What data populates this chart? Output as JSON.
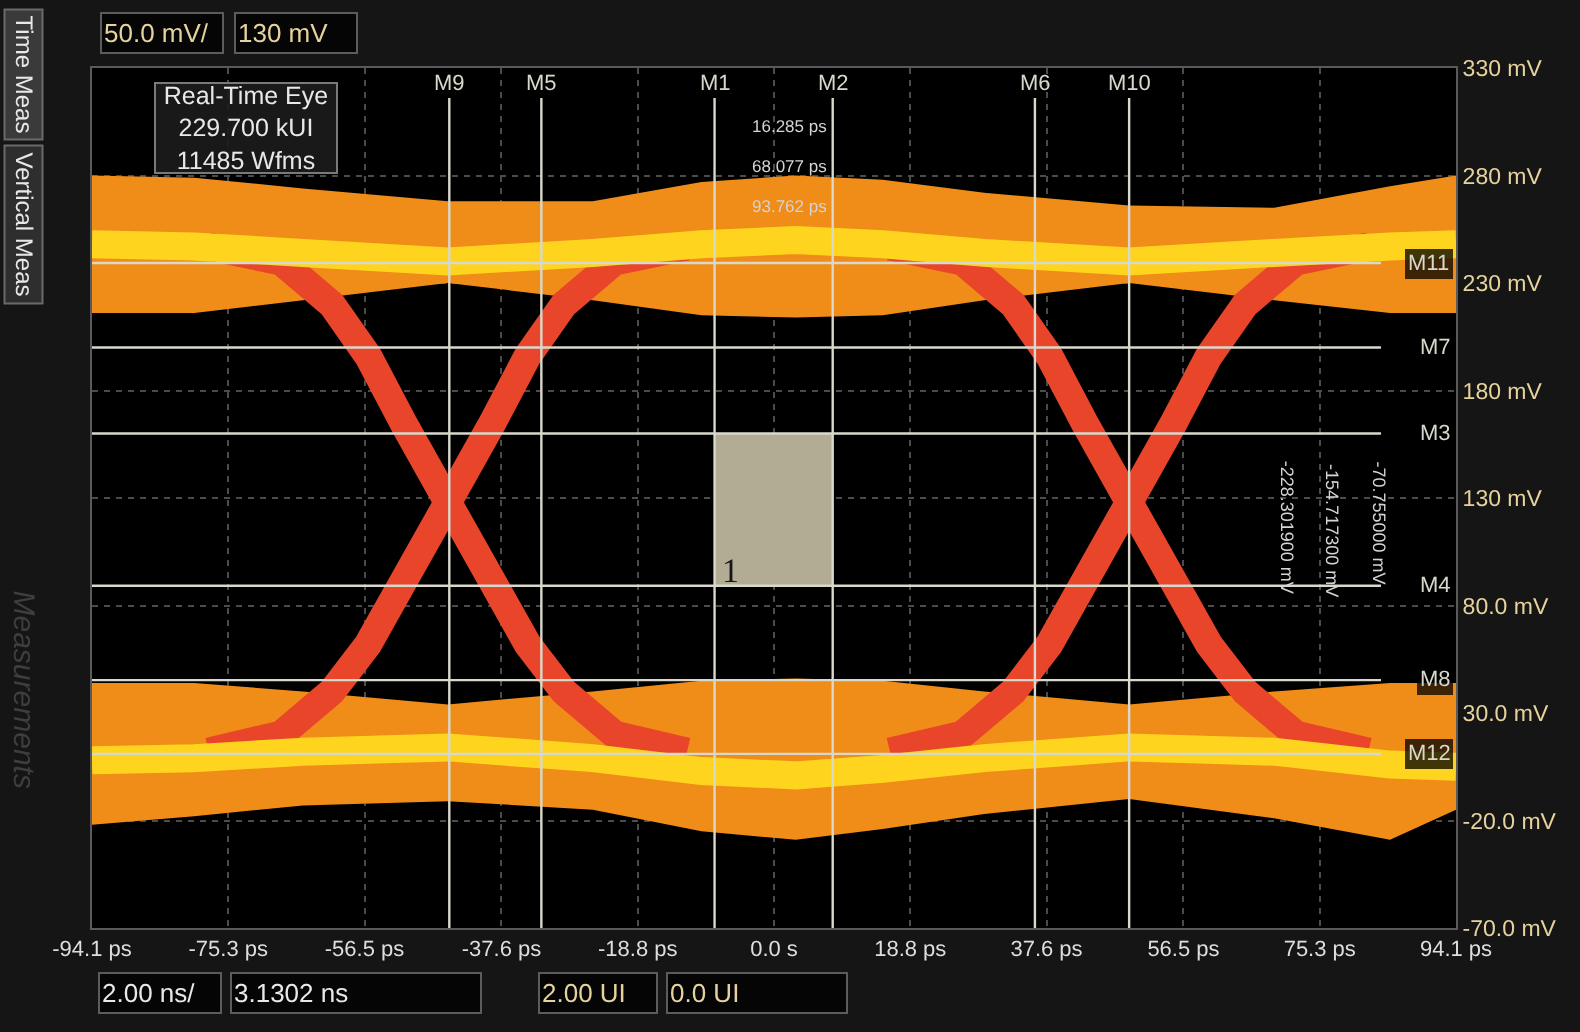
{
  "chart_data": {
    "type": "line",
    "xlim": [
      -94.1,
      94.1
    ],
    "xticks": [
      {
        "value": -94.1,
        "label": "-94.1 ps"
      },
      {
        "value": -75.3,
        "label": "-75.3 ps"
      },
      {
        "value": -56.5,
        "label": "-56.5 ps"
      },
      {
        "value": -37.6,
        "label": "-37.6 ps"
      },
      {
        "value": -18.8,
        "label": "-18.8 ps"
      },
      {
        "value": 0,
        "label": "0.0 s"
      },
      {
        "value": 18.8,
        "label": "18.8 ps"
      },
      {
        "value": 37.6,
        "label": "37.6 ps"
      },
      {
        "value": 56.5,
        "label": "56.5 ps"
      },
      {
        "value": 75.3,
        "label": "75.3 ps"
      },
      {
        "value": 94.1,
        "label": "94.1 ps"
      }
    ],
    "ylim": [
      -70,
      330
    ],
    "yticks": [
      {
        "value": -70,
        "label": "-70.0 mV"
      },
      {
        "value": -20,
        "label": "-20.0 mV"
      },
      {
        "value": 30,
        "label": "30.0 mV"
      },
      {
        "value": 80,
        "label": "80.0 mV"
      },
      {
        "value": 130,
        "label": "130 mV"
      },
      {
        "value": 180,
        "label": "180 mV"
      },
      {
        "value": 230,
        "label": "230 mV"
      },
      {
        "value": 280,
        "label": "280 mV"
      },
      {
        "value": 330,
        "label": "330 mV"
      }
    ],
    "grid": true,
    "series": [
      {
        "color": "#f08c18",
        "x": [
          -94.1,
          -80,
          -65,
          -45,
          -25,
          -10,
          3,
          15,
          29,
          49,
          69,
          85,
          94.1
        ],
        "values": [
          null,
          null,
          null,
          null,
          null,
          null,
          null,
          null,
          null,
          null,
          null,
          null,
          null
        ],
        "lower": [
          216,
          216,
          222,
          230,
          222,
          215,
          214,
          215,
          222,
          230,
          222,
          216,
          216
        ],
        "upper": [
          280,
          279,
          274,
          268,
          268,
          277,
          280,
          278,
          272,
          266,
          265,
          275,
          280
        ]
      },
      {
        "color": "#f08c18",
        "x": [
          -94.1,
          -80,
          -65,
          -45,
          -25,
          -10,
          3,
          15,
          29,
          49,
          69,
          85,
          94.1
        ],
        "values": [
          null,
          null,
          null,
          null,
          null,
          null,
          null,
          null,
          null,
          null,
          null,
          null,
          null
        ],
        "lower": [
          -22,
          -18,
          -13,
          -11,
          -15,
          -25,
          -29,
          -24,
          -17,
          -10,
          -19,
          -29,
          -15
        ],
        "upper": [
          44,
          44,
          40,
          34,
          40,
          45,
          46,
          45,
          40,
          34,
          40,
          44,
          44
        ]
      },
      {
        "color": "#e8452a",
        "x": [
          -78,
          -68,
          -61,
          -56,
          -51,
          -45,
          -39,
          -34,
          -29,
          -22,
          -12
        ],
        "values": [
          12,
          20,
          40,
          62,
          92,
          128,
          164,
          196,
          220,
          240,
          247
        ]
      },
      {
        "color": "#e8452a",
        "x": [
          -78,
          -68,
          -61,
          -56,
          -51,
          -45,
          -39,
          -34,
          -29,
          -22,
          -12
        ],
        "values": [
          247,
          240,
          220,
          196,
          164,
          128,
          92,
          62,
          40,
          20,
          12
        ]
      },
      {
        "color": "#e8452a",
        "x": [
          16,
          26,
          33,
          38,
          43,
          49,
          55,
          60,
          65,
          72,
          82
        ],
        "values": [
          12,
          20,
          40,
          62,
          92,
          128,
          164,
          196,
          220,
          240,
          247
        ]
      },
      {
        "color": "#e8452a",
        "x": [
          16,
          26,
          33,
          38,
          43,
          49,
          55,
          60,
          65,
          72,
          82
        ],
        "values": [
          247,
          240,
          220,
          196,
          164,
          128,
          92,
          62,
          40,
          20,
          12
        ]
      },
      {
        "color": "#ffd41e",
        "x": [
          -94.1,
          -80,
          -65,
          -45,
          -25,
          -10,
          3,
          15,
          29,
          49,
          69,
          85,
          94.1
        ],
        "values": [
          248,
          247,
          244,
          240,
          244,
          248,
          250,
          248,
          244,
          240,
          244,
          247,
          248
        ]
      },
      {
        "color": "#ffd41e",
        "x": [
          -94.1,
          -80,
          -65,
          -45,
          -25,
          -10,
          3,
          15,
          29,
          49,
          69,
          85,
          94.1
        ],
        "values": [
          8,
          9,
          12,
          14,
          9,
          3,
          1,
          4,
          9,
          14,
          12,
          6,
          5
        ]
      },
      {
        "color": "#b3ac94",
        "x": [
          -8.2,
          8.1
        ],
        "values": [
          null,
          null
        ],
        "lower": [
          89.2,
          89.2
        ],
        "upper": [
          160.0,
          160.0
        ]
      }
    ],
    "ref_lines": [
      {
        "axis": "x",
        "value": -44.8,
        "label": "M9",
        "color": "#d8d8cc"
      },
      {
        "axis": "x",
        "value": -32.1,
        "label": "M5",
        "color": "#d8d8cc"
      },
      {
        "axis": "x",
        "value": -8.2,
        "label": "M1",
        "color": "#d8d8cc"
      },
      {
        "axis": "x",
        "value": 8.1,
        "label": "M2",
        "color": "#d8d8cc"
      },
      {
        "axis": "x",
        "value": 36.0,
        "label": "M6",
        "color": "#d8d8cc"
      },
      {
        "axis": "x",
        "value": 49.0,
        "label": "M10",
        "color": "#d8d8cc"
      },
      {
        "axis": "y",
        "value": 239.3,
        "label": "M11",
        "color": "#d8d8cc"
      },
      {
        "axis": "y",
        "value": 200.0,
        "label": "M7",
        "color": "#d8d8cc"
      },
      {
        "axis": "y",
        "value": 160.0,
        "label": "M3",
        "color": "#d8d8cc"
      },
      {
        "axis": "y",
        "value": 89.2,
        "label": "M4",
        "color": "#d8d8cc"
      },
      {
        "axis": "y",
        "value": 45.3,
        "label": "M8",
        "color": "#d8d8cc"
      },
      {
        "axis": "y",
        "value": 11.0,
        "label": "M12",
        "color": "#d8d8cc"
      }
    ],
    "annotations": [
      "Real-Time Eye\n229.700 kUI\n11485 Wfms",
      "50.0 mV/",
      "130 mV",
      "2.00 ns/",
      "3.1302 ns",
      "2.00 UI",
      "0.0 UI",
      "Time Meas",
      "Vertical Meas",
      "Measurements",
      "16.285 ps",
      "68.077 ps",
      "93.762 ps",
      "-228.301900 mV",
      "-154.717300 mV",
      "-70.755000 mV",
      "1"
    ]
  }
}
